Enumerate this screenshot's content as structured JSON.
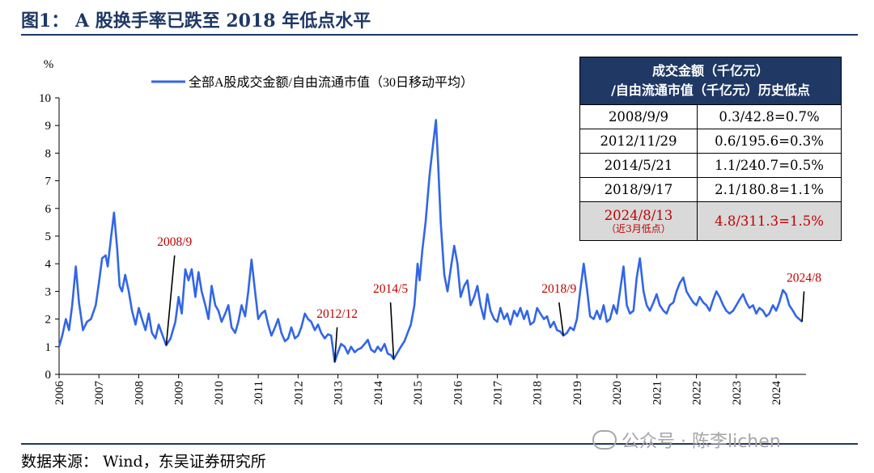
{
  "figure_title": "图1：  A 股换手率已跌至 2018 年低点水平",
  "source": "数据来源：  Wind，东吴证券研究所",
  "watermark": "公众号 · 陈李lichen",
  "colors": {
    "line": "#3366e6",
    "header_bg": "#1f3864",
    "highlight_text": "#c00000",
    "highlight_bg": "#d9d9d9",
    "title": "#1f3864"
  },
  "table": {
    "header_line1": "成交金额（千亿元）",
    "header_line2": "/自由流通市值（千亿元）历史低点",
    "rows": [
      {
        "date": "2008/9/9",
        "value": "0.3/42.8=0.7%"
      },
      {
        "date": "2012/11/29",
        "value": "0.6/195.6=0.3%"
      },
      {
        "date": "2014/5/21",
        "value": "1.1/240.7=0.5%"
      },
      {
        "date": "2018/9/17",
        "value": "2.1/180.8=1.1%"
      },
      {
        "date": "2024/8/13",
        "note": "（近3月低点）",
        "value": "4.8/311.3=1.5%"
      }
    ]
  },
  "chart_data": {
    "type": "line",
    "ylabel": "%",
    "ylim": [
      0,
      10
    ],
    "yticks": [
      "0",
      "1",
      "2",
      "3",
      "4",
      "5",
      "6",
      "7",
      "8",
      "9",
      "10"
    ],
    "xlim": [
      2006,
      2024.75
    ],
    "xticks": [
      "2006",
      "2007",
      "2008",
      "2009",
      "2010",
      "2011",
      "2012",
      "2013",
      "2014",
      "2015",
      "2016",
      "2017",
      "2018",
      "2019",
      "2020",
      "2021",
      "2022",
      "2023",
      "2024"
    ],
    "legend": "top-left",
    "grid": false,
    "series": [
      {
        "name": "全部A股成交金额/自由流通市值（30日移动平均）",
        "points": [
          [
            2006.0,
            1.0
          ],
          [
            2006.08,
            1.4
          ],
          [
            2006.17,
            2.0
          ],
          [
            2006.25,
            1.6
          ],
          [
            2006.33,
            2.5
          ],
          [
            2006.42,
            3.9
          ],
          [
            2006.5,
            2.6
          ],
          [
            2006.6,
            1.6
          ],
          [
            2006.7,
            1.9
          ],
          [
            2006.8,
            2.0
          ],
          [
            2006.92,
            2.5
          ],
          [
            2007.0,
            3.3
          ],
          [
            2007.08,
            4.2
          ],
          [
            2007.17,
            4.3
          ],
          [
            2007.22,
            3.9
          ],
          [
            2007.3,
            4.9
          ],
          [
            2007.38,
            5.85
          ],
          [
            2007.46,
            4.5
          ],
          [
            2007.52,
            3.2
          ],
          [
            2007.58,
            3.0
          ],
          [
            2007.66,
            3.6
          ],
          [
            2007.75,
            3.0
          ],
          [
            2007.83,
            2.3
          ],
          [
            2007.92,
            1.8
          ],
          [
            2008.0,
            2.4
          ],
          [
            2008.08,
            2.0
          ],
          [
            2008.17,
            1.6
          ],
          [
            2008.25,
            2.2
          ],
          [
            2008.33,
            1.5
          ],
          [
            2008.42,
            1.3
          ],
          [
            2008.5,
            1.8
          ],
          [
            2008.6,
            1.4
          ],
          [
            2008.69,
            1.05
          ],
          [
            2008.8,
            1.3
          ],
          [
            2008.92,
            1.9
          ],
          [
            2009.0,
            2.8
          ],
          [
            2009.08,
            2.2
          ],
          [
            2009.17,
            3.8
          ],
          [
            2009.25,
            3.4
          ],
          [
            2009.33,
            3.8
          ],
          [
            2009.42,
            2.8
          ],
          [
            2009.5,
            3.7
          ],
          [
            2009.58,
            3.0
          ],
          [
            2009.67,
            2.5
          ],
          [
            2009.75,
            2.0
          ],
          [
            2009.83,
            3.2
          ],
          [
            2009.92,
            2.5
          ],
          [
            2010.0,
            2.3
          ],
          [
            2010.08,
            1.9
          ],
          [
            2010.17,
            2.2
          ],
          [
            2010.25,
            2.5
          ],
          [
            2010.33,
            1.7
          ],
          [
            2010.42,
            1.5
          ],
          [
            2010.5,
            1.9
          ],
          [
            2010.58,
            2.5
          ],
          [
            2010.67,
            2.1
          ],
          [
            2010.75,
            3.0
          ],
          [
            2010.83,
            4.15
          ],
          [
            2010.92,
            3.0
          ],
          [
            2011.0,
            2.0
          ],
          [
            2011.08,
            2.2
          ],
          [
            2011.17,
            2.3
          ],
          [
            2011.25,
            1.8
          ],
          [
            2011.33,
            1.4
          ],
          [
            2011.42,
            1.7
          ],
          [
            2011.5,
            2.0
          ],
          [
            2011.58,
            1.5
          ],
          [
            2011.67,
            1.2
          ],
          [
            2011.75,
            1.3
          ],
          [
            2011.83,
            1.7
          ],
          [
            2011.92,
            1.3
          ],
          [
            2012.0,
            1.4
          ],
          [
            2012.08,
            1.7
          ],
          [
            2012.17,
            2.2
          ],
          [
            2012.25,
            2.0
          ],
          [
            2012.33,
            1.9
          ],
          [
            2012.42,
            1.6
          ],
          [
            2012.5,
            1.8
          ],
          [
            2012.58,
            1.5
          ],
          [
            2012.67,
            1.3
          ],
          [
            2012.75,
            1.45
          ],
          [
            2012.83,
            1.4
          ],
          [
            2012.92,
            0.45
          ],
          [
            2013.0,
            0.8
          ],
          [
            2013.08,
            1.1
          ],
          [
            2013.17,
            1.0
          ],
          [
            2013.25,
            0.75
          ],
          [
            2013.33,
            1.0
          ],
          [
            2013.42,
            0.8
          ],
          [
            2013.5,
            0.9
          ],
          [
            2013.58,
            0.95
          ],
          [
            2013.67,
            1.1
          ],
          [
            2013.75,
            1.25
          ],
          [
            2013.83,
            0.9
          ],
          [
            2013.92,
            0.8
          ],
          [
            2014.0,
            1.0
          ],
          [
            2014.08,
            0.85
          ],
          [
            2014.17,
            1.1
          ],
          [
            2014.25,
            0.75
          ],
          [
            2014.33,
            0.7
          ],
          [
            2014.4,
            0.55
          ],
          [
            2014.5,
            0.8
          ],
          [
            2014.58,
            1.0
          ],
          [
            2014.67,
            1.2
          ],
          [
            2014.75,
            1.5
          ],
          [
            2014.83,
            1.8
          ],
          [
            2014.92,
            2.5
          ],
          [
            2015.0,
            4.0
          ],
          [
            2015.05,
            3.4
          ],
          [
            2015.12,
            4.5
          ],
          [
            2015.2,
            5.5
          ],
          [
            2015.3,
            7.2
          ],
          [
            2015.38,
            8.2
          ],
          [
            2015.46,
            9.2
          ],
          [
            2015.52,
            7.5
          ],
          [
            2015.58,
            5.5
          ],
          [
            2015.67,
            3.6
          ],
          [
            2015.75,
            3.0
          ],
          [
            2015.83,
            3.8
          ],
          [
            2015.92,
            4.65
          ],
          [
            2016.0,
            4.0
          ],
          [
            2016.08,
            2.8
          ],
          [
            2016.17,
            3.2
          ],
          [
            2016.25,
            3.4
          ],
          [
            2016.33,
            2.5
          ],
          [
            2016.42,
            2.8
          ],
          [
            2016.5,
            3.2
          ],
          [
            2016.58,
            2.5
          ],
          [
            2016.67,
            2.0
          ],
          [
            2016.75,
            2.9
          ],
          [
            2016.83,
            2.3
          ],
          [
            2016.92,
            2.0
          ],
          [
            2017.0,
            1.9
          ],
          [
            2017.08,
            2.4
          ],
          [
            2017.17,
            2.0
          ],
          [
            2017.25,
            2.2
          ],
          [
            2017.33,
            1.8
          ],
          [
            2017.42,
            2.3
          ],
          [
            2017.5,
            2.1
          ],
          [
            2017.58,
            2.4
          ],
          [
            2017.67,
            2.0
          ],
          [
            2017.75,
            2.3
          ],
          [
            2017.83,
            1.8
          ],
          [
            2017.92,
            1.9
          ],
          [
            2018.0,
            2.4
          ],
          [
            2018.08,
            2.2
          ],
          [
            2018.17,
            2.0
          ],
          [
            2018.25,
            2.1
          ],
          [
            2018.33,
            1.7
          ],
          [
            2018.42,
            1.9
          ],
          [
            2018.5,
            1.6
          ],
          [
            2018.58,
            1.55
          ],
          [
            2018.66,
            1.4
          ],
          [
            2018.75,
            1.5
          ],
          [
            2018.83,
            1.7
          ],
          [
            2018.92,
            1.6
          ],
          [
            2019.0,
            2.0
          ],
          [
            2019.08,
            3.0
          ],
          [
            2019.17,
            4.0
          ],
          [
            2019.25,
            3.1
          ],
          [
            2019.33,
            2.1
          ],
          [
            2019.42,
            2.0
          ],
          [
            2019.5,
            2.3
          ],
          [
            2019.58,
            2.0
          ],
          [
            2019.67,
            2.5
          ],
          [
            2019.75,
            1.9
          ],
          [
            2019.83,
            2.0
          ],
          [
            2019.92,
            2.5
          ],
          [
            2020.0,
            2.2
          ],
          [
            2020.08,
            3.0
          ],
          [
            2020.17,
            3.9
          ],
          [
            2020.25,
            2.5
          ],
          [
            2020.33,
            2.2
          ],
          [
            2020.42,
            2.3
          ],
          [
            2020.5,
            3.5
          ],
          [
            2020.58,
            4.2
          ],
          [
            2020.67,
            3.0
          ],
          [
            2020.75,
            2.5
          ],
          [
            2020.83,
            2.3
          ],
          [
            2020.92,
            2.6
          ],
          [
            2021.0,
            2.9
          ],
          [
            2021.08,
            2.5
          ],
          [
            2021.17,
            2.3
          ],
          [
            2021.25,
            2.2
          ],
          [
            2021.33,
            2.5
          ],
          [
            2021.42,
            2.6
          ],
          [
            2021.5,
            3.0
          ],
          [
            2021.58,
            3.3
          ],
          [
            2021.67,
            3.5
          ],
          [
            2021.75,
            3.0
          ],
          [
            2021.83,
            2.8
          ],
          [
            2021.92,
            2.6
          ],
          [
            2022.0,
            2.5
          ],
          [
            2022.08,
            2.8
          ],
          [
            2022.17,
            2.6
          ],
          [
            2022.25,
            2.5
          ],
          [
            2022.33,
            2.3
          ],
          [
            2022.42,
            2.7
          ],
          [
            2022.5,
            3.0
          ],
          [
            2022.58,
            2.8
          ],
          [
            2022.67,
            2.5
          ],
          [
            2022.75,
            2.3
          ],
          [
            2022.83,
            2.2
          ],
          [
            2022.92,
            2.3
          ],
          [
            2023.0,
            2.5
          ],
          [
            2023.08,
            2.7
          ],
          [
            2023.17,
            2.9
          ],
          [
            2023.25,
            2.6
          ],
          [
            2023.33,
            2.4
          ],
          [
            2023.42,
            2.5
          ],
          [
            2023.5,
            2.2
          ],
          [
            2023.58,
            2.4
          ],
          [
            2023.67,
            2.3
          ],
          [
            2023.75,
            2.1
          ],
          [
            2023.83,
            2.2
          ],
          [
            2023.92,
            2.5
          ],
          [
            2024.0,
            2.3
          ],
          [
            2024.08,
            2.6
          ],
          [
            2024.17,
            3.05
          ],
          [
            2024.25,
            2.9
          ],
          [
            2024.33,
            2.5
          ],
          [
            2024.42,
            2.3
          ],
          [
            2024.5,
            2.1
          ],
          [
            2024.58,
            2.0
          ],
          [
            2024.65,
            1.9
          ]
        ]
      }
    ],
    "annotations": [
      {
        "text": "2008/9",
        "x": 2008.69,
        "y": 1.05,
        "label_x": 2008.9,
        "label_y": 4.3
      },
      {
        "text": "2012/12",
        "x": 2012.92,
        "y": 0.45,
        "label_x": 2012.98,
        "label_y": 1.7
      },
      {
        "text": "2014/5",
        "x": 2014.4,
        "y": 0.55,
        "label_x": 2014.32,
        "label_y": 2.6
      },
      {
        "text": "2018/9",
        "x": 2018.66,
        "y": 1.4,
        "label_x": 2018.55,
        "label_y": 2.6
      },
      {
        "text": "2024/8",
        "x": 2024.65,
        "y": 1.9,
        "label_x": 2024.7,
        "label_y": 3.0
      }
    ]
  }
}
